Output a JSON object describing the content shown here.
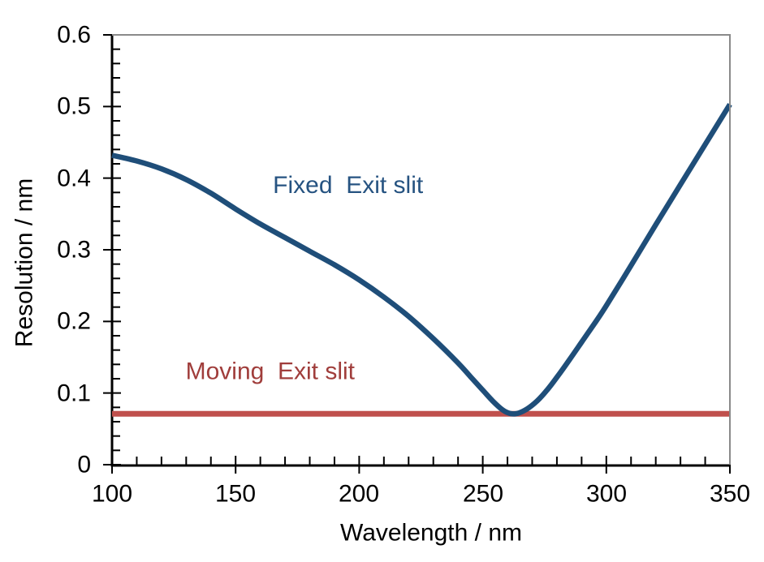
{
  "figure": {
    "background_color": "#FFFFFF",
    "plot_border_color": "#8A8A8A",
    "axis_color": "#000000",
    "tick_label_color": "#000000"
  },
  "chart_data": {
    "type": "line",
    "title": "",
    "xlabel": "Wavelength / nm",
    "ylabel": "Resolution / nm",
    "xlim": [
      100,
      350
    ],
    "ylim": [
      0,
      0.6
    ],
    "grid": false,
    "legend": "none (inline colored text labels)",
    "x_ticks": {
      "values": [
        100,
        150,
        200,
        250,
        300,
        350
      ],
      "labels": [
        "100",
        "150",
        "200",
        "250",
        "300",
        "350"
      ],
      "minor_step": 10
    },
    "y_ticks": {
      "values": [
        0,
        0.1,
        0.2,
        0.3,
        0.4,
        0.5,
        0.6
      ],
      "labels": [
        "0",
        "0.1",
        "0.2",
        "0.3",
        "0.4",
        "0.5",
        "0.6"
      ],
      "minor_step": 0.02
    },
    "series": [
      {
        "name": "Fixed Exit slit",
        "color": "#1F4E79",
        "line_width": 6.5,
        "points": [
          [
            100,
            0.432
          ],
          [
            110,
            0.424
          ],
          [
            120,
            0.413
          ],
          [
            130,
            0.398
          ],
          [
            140,
            0.379
          ],
          [
            150,
            0.357
          ],
          [
            160,
            0.336
          ],
          [
            170,
            0.317
          ],
          [
            180,
            0.298
          ],
          [
            190,
            0.279
          ],
          [
            200,
            0.258
          ],
          [
            210,
            0.234
          ],
          [
            220,
            0.207
          ],
          [
            230,
            0.176
          ],
          [
            240,
            0.142
          ],
          [
            245,
            0.123
          ],
          [
            250,
            0.104
          ],
          [
            254,
            0.089
          ],
          [
            258,
            0.0765
          ],
          [
            261,
            0.0715
          ],
          [
            264,
            0.0715
          ],
          [
            268,
            0.078
          ],
          [
            272,
            0.089
          ],
          [
            276,
            0.104
          ],
          [
            280,
            0.122
          ],
          [
            285,
            0.146
          ],
          [
            290,
            0.171
          ],
          [
            295,
            0.196
          ],
          [
            300,
            0.222
          ],
          [
            310,
            0.278
          ],
          [
            320,
            0.335
          ],
          [
            330,
            0.391
          ],
          [
            340,
            0.447
          ],
          [
            350,
            0.503
          ]
        ]
      },
      {
        "name": "Moving Exit slit",
        "color": "#C0504D",
        "line_width": 7,
        "points": [
          [
            100,
            0.071
          ],
          [
            350,
            0.071
          ]
        ]
      }
    ],
    "annotations": [
      {
        "text": "Fixed  Exit slit",
        "color": "#265381",
        "x": 195.5,
        "y": 0.39
      },
      {
        "text": "Moving  Exit slit",
        "color": "#A03D3B",
        "x": 164.0,
        "y": 0.13
      }
    ]
  }
}
